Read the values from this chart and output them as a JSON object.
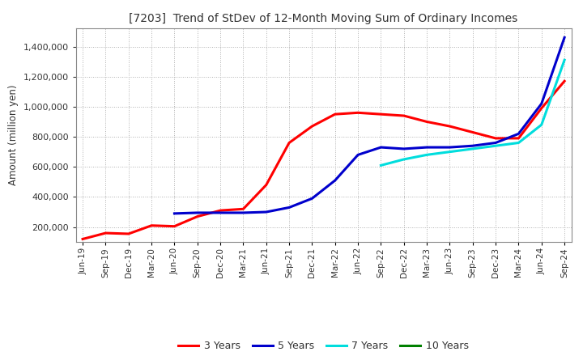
{
  "title": "[7203]  Trend of StDev of 12-Month Moving Sum of Ordinary Incomes",
  "ylabel": "Amount (million yen)",
  "background_color": "#ffffff",
  "grid_color": "#b0b0b0",
  "ylim": [
    100000,
    1520000
  ],
  "yticks": [
    200000,
    400000,
    600000,
    800000,
    1000000,
    1200000,
    1400000
  ],
  "dates": [
    "Jun-19",
    "Sep-19",
    "Dec-19",
    "Mar-20",
    "Jun-20",
    "Sep-20",
    "Dec-20",
    "Mar-21",
    "Jun-21",
    "Sep-21",
    "Dec-21",
    "Mar-22",
    "Jun-22",
    "Sep-22",
    "Dec-22",
    "Mar-23",
    "Jun-23",
    "Sep-23",
    "Dec-23",
    "Mar-24",
    "Jun-24",
    "Sep-24"
  ],
  "series": {
    "3 Years": {
      "color": "#ff0000",
      "values": [
        120000,
        160000,
        155000,
        210000,
        205000,
        270000,
        310000,
        320000,
        480000,
        760000,
        870000,
        950000,
        960000,
        950000,
        940000,
        900000,
        870000,
        830000,
        790000,
        790000,
        990000,
        1170000
      ]
    },
    "5 Years": {
      "color": "#0000cc",
      "values": [
        null,
        null,
        null,
        null,
        290000,
        295000,
        295000,
        295000,
        300000,
        330000,
        390000,
        510000,
        680000,
        730000,
        720000,
        730000,
        730000,
        740000,
        760000,
        820000,
        1020000,
        1460000
      ]
    },
    "7 Years": {
      "color": "#00dddd",
      "values": [
        null,
        null,
        null,
        null,
        null,
        null,
        null,
        null,
        null,
        null,
        null,
        null,
        null,
        610000,
        650000,
        680000,
        700000,
        720000,
        740000,
        760000,
        880000,
        1310000
      ]
    },
    "10 Years": {
      "color": "#008000",
      "values": [
        null,
        null,
        null,
        null,
        null,
        null,
        null,
        null,
        null,
        null,
        null,
        null,
        null,
        null,
        null,
        null,
        null,
        null,
        null,
        null,
        null,
        null
      ]
    }
  },
  "legend_labels": [
    "3 Years",
    "5 Years",
    "7 Years",
    "10 Years"
  ],
  "legend_colors": [
    "#ff0000",
    "#0000cc",
    "#00dddd",
    "#008000"
  ]
}
